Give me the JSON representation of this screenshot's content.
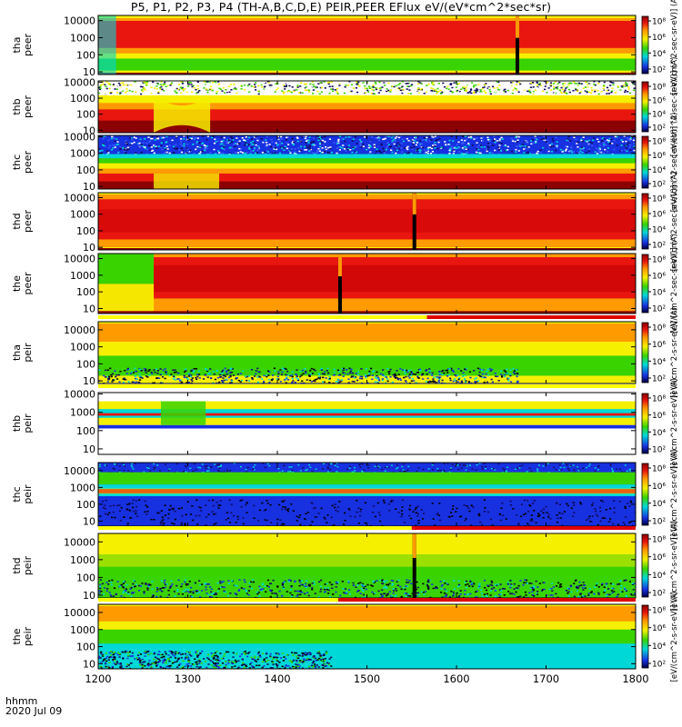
{
  "title": "P5, P1, P2, P3, P4 (TH-A,B,C,D,E) PEIR,PEER EFlux eV/(eV*cm^2*sec*sr)",
  "time_label_line1": "hhmm",
  "time_label_line2": "2020 Jul 09",
  "colorbar_label_peer": "[eV/(cm^2-sec-sr-eV)] (A)",
  "colorbar_label_peir": "[eV/(cm^2-s-sr-eV)] (A)",
  "colorbar_ticks": [
    "10⁸",
    "10⁶",
    "10⁴",
    "10²"
  ],
  "colors": {
    "dark_red": "#8b0000",
    "red": "#e8160f",
    "orange": "#ff9a00",
    "yellow": "#f5f000",
    "green": "#39d300",
    "cyan": "#00d8d8",
    "blue": "#1730e0",
    "dark_blue": "#120a60",
    "black": "#000000",
    "bar_yellow": "#ffff00",
    "bar_red": "#e00000"
  },
  "chart_data": {
    "type": "heatmap",
    "x_axis": {
      "range": [
        1200,
        1800
      ],
      "ticks": [
        "1200",
        "1300",
        "1400",
        "1500",
        "1600",
        "1700",
        "1800"
      ]
    },
    "y_scale": "log",
    "panels": [
      {
        "probe": "tha",
        "instrument": "peer",
        "ylabel": "tha peer",
        "y_ticks": [
          "10",
          "100",
          "1000",
          "10000"
        ],
        "y_range": [
          7,
          20000
        ],
        "style": "peer_a",
        "data_gaps": [
          1668
        ],
        "colorbar_label": "[eV/(cm^2-sec-sr-eV)] (A)"
      },
      {
        "probe": "thb",
        "instrument": "peer",
        "ylabel": "thb peer",
        "y_ticks": [
          "10",
          "100",
          "1000",
          "10000"
        ],
        "y_range": [
          7,
          12000
        ],
        "style": "peer_b",
        "data_gaps": [],
        "colorbar_label": "[eV/(cm^2-sec-sr-eV)] (A)"
      },
      {
        "probe": "thc",
        "instrument": "peer",
        "ylabel": "thc peer",
        "y_ticks": [
          "10",
          "100",
          "1000",
          "10000"
        ],
        "y_range": [
          7,
          12000
        ],
        "style": "peer_c",
        "data_gaps": [],
        "colorbar_label": "[eV/(cm^2-sec-sr-eV)] (A)"
      },
      {
        "probe": "thd",
        "instrument": "peer",
        "ylabel": "thd peer",
        "y_ticks": [
          "10",
          "100",
          "1000",
          "10000"
        ],
        "y_range": [
          7,
          20000
        ],
        "style": "peer_d",
        "data_gaps": [
          1553
        ],
        "colorbar_label": "[eV/(cm^2-sec-sr-eV)] (A)"
      },
      {
        "probe": "the",
        "instrument": "peer",
        "ylabel": "the peer",
        "y_ticks": [
          "10",
          "100",
          "1000",
          "10000"
        ],
        "y_range": [
          5,
          20000
        ],
        "style": "peer_e",
        "data_gaps": [
          1470
        ],
        "colorbar_label": "[eV/(cm^2-sec-sr-eV)] (A)"
      },
      {
        "probe": "tha",
        "instrument": "peir",
        "ylabel": "tha peir",
        "y_ticks": [
          "10",
          "100",
          "1000",
          "10000"
        ],
        "y_range": [
          7,
          30000
        ],
        "style": "peir_a",
        "data_gaps": [],
        "colorbar_label": "[eV/(cm^2-s-sr-eV)] (A)"
      },
      {
        "probe": "thb",
        "instrument": "peir",
        "ylabel": "thb peir",
        "y_ticks": [
          "10",
          "100",
          "1000",
          "10000"
        ],
        "y_range": [
          5,
          12000
        ],
        "style": "peir_b",
        "data_gaps": [],
        "colorbar_label": "[eV/(cm^2-s-sr-eV)] (A)"
      },
      {
        "probe": "thc",
        "instrument": "peir",
        "ylabel": "thc peir",
        "y_ticks": [
          "10",
          "100",
          "1000",
          "10000"
        ],
        "y_range": [
          5,
          30000
        ],
        "style": "peir_c",
        "data_gaps": [],
        "colorbar_label": "[eV/(cm^2-s-sr-eV)] (A)"
      },
      {
        "probe": "thd",
        "instrument": "peir",
        "ylabel": "thd peir",
        "y_ticks": [
          "10",
          "100",
          "1000",
          "10000"
        ],
        "y_range": [
          7,
          30000
        ],
        "style": "peir_d",
        "data_gaps": [
          1553
        ],
        "colorbar_label": "[eV/(cm^2-s-sr-eV)] (A)"
      },
      {
        "probe": "the",
        "instrument": "peir",
        "ylabel": "the peir",
        "y_ticks": [
          "10",
          "100",
          "1000",
          "10000"
        ],
        "y_range": [
          5,
          30000
        ],
        "style": "peir_e",
        "data_gaps": [],
        "colorbar_label": "[eV/(cm^2-s-sr-eV)] (A)"
      }
    ],
    "mode_bars": [
      {
        "after_panel": 4,
        "segments": [
          {
            "from": 1200,
            "to": 1567,
            "color": "#ffff00"
          },
          {
            "from": 1567,
            "to": 1800,
            "color": "#e00000"
          }
        ]
      },
      {
        "after_panel": 5,
        "segments": [
          {
            "from": 1200,
            "to": 1800,
            "color": "#ffff00"
          }
        ]
      },
      {
        "after_panel": 7,
        "segments": [
          {
            "from": 1200,
            "to": 1550,
            "color": "#ffff00"
          },
          {
            "from": 1550,
            "to": 1800,
            "color": "#e00000"
          }
        ]
      },
      {
        "after_panel": 8,
        "segments": [
          {
            "from": 1200,
            "to": 1468,
            "color": "#ffff00"
          },
          {
            "from": 1468,
            "to": 1800,
            "color": "#e00000"
          }
        ]
      }
    ]
  }
}
